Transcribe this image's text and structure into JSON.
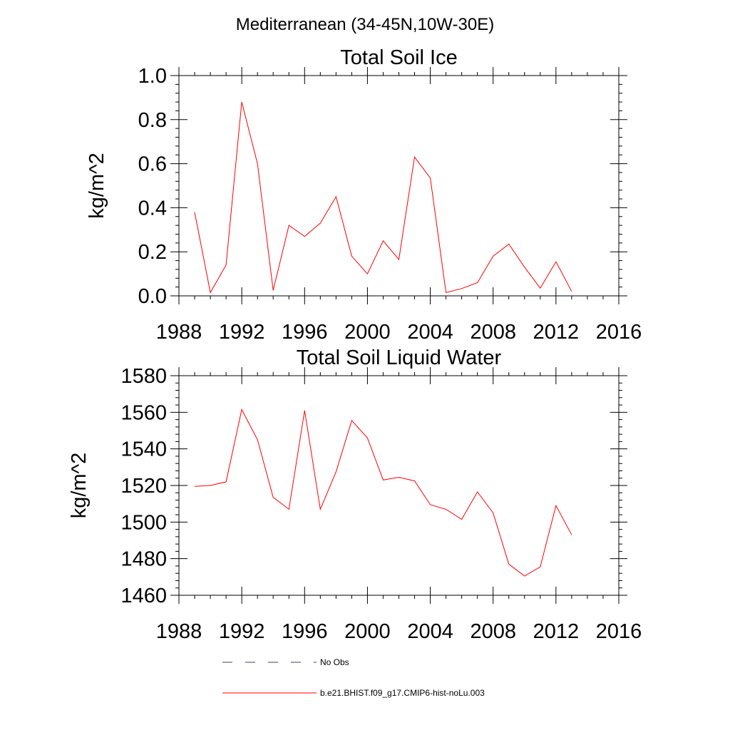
{
  "figure_title": "Mediterranean (34-45N,10W-30E)",
  "colors": {
    "model_line": "#ff0000",
    "obs_line": "#404060",
    "axes": "#000000"
  },
  "legend": [
    {
      "label": "No Obs",
      "style": "dashed",
      "color": "#404060"
    },
    {
      "label": "b.e21.BHIST.f09_g17.CMIP6-hist-noLu.003",
      "style": "solid",
      "color": "#ff0000"
    }
  ],
  "chart_data": [
    {
      "type": "line",
      "title": "Total Soil Ice",
      "xlabel": "",
      "ylabel": "kg/m^2",
      "xlim": [
        1988,
        2016
      ],
      "ylim": [
        0,
        1.0
      ],
      "x_ticks": [
        1988,
        1992,
        1996,
        2000,
        2004,
        2008,
        2012,
        2016
      ],
      "x_tick_labels": [
        "1988",
        "1992",
        "1996",
        "2000",
        "2004",
        "2008",
        "2012",
        "2016"
      ],
      "y_ticks": [
        0,
        0.2,
        0.4,
        0.6,
        0.8,
        1.0
      ],
      "y_tick_labels": [
        "0.0",
        "0.2",
        "0.4",
        "0.6",
        "0.8",
        "1.0"
      ],
      "grid": false,
      "series": [
        {
          "name": "b.e21.BHIST.f09_g17.CMIP6-hist-noLu.003",
          "x": [
            1989,
            1990,
            1991,
            1992,
            1993,
            1994,
            1995,
            1996,
            1997,
            1998,
            1999,
            2000,
            2001,
            2002,
            2003,
            2004,
            2005,
            2006,
            2007,
            2008,
            2009,
            2010,
            2011,
            2012,
            2013
          ],
          "values": [
            0.38,
            0.015,
            0.14,
            0.88,
            0.6,
            0.025,
            0.32,
            0.27,
            0.33,
            0.45,
            0.18,
            0.1,
            0.25,
            0.165,
            0.63,
            0.535,
            0.015,
            0.033,
            0.06,
            0.18,
            0.235,
            0.13,
            0.035,
            0.155,
            0.02
          ]
        }
      ]
    },
    {
      "type": "line",
      "title": "Total Soil Liquid Water",
      "xlabel": "",
      "ylabel": "kg/m^2",
      "xlim": [
        1988,
        2016
      ],
      "ylim": [
        1460,
        1580
      ],
      "x_ticks": [
        1988,
        1992,
        1996,
        2000,
        2004,
        2008,
        2012,
        2016
      ],
      "x_tick_labels": [
        "1988",
        "1992",
        "1996",
        "2000",
        "2004",
        "2008",
        "2012",
        "2016"
      ],
      "y_ticks": [
        1460,
        1480,
        1500,
        1520,
        1540,
        1560,
        1580
      ],
      "y_tick_labels": [
        "1460",
        "1480",
        "1500",
        "1520",
        "1540",
        "1560",
        "1580"
      ],
      "grid": false,
      "series": [
        {
          "name": "b.e21.BHIST.f09_g17.CMIP6-hist-noLu.003",
          "x": [
            1989,
            1990,
            1991,
            1992,
            1993,
            1994,
            1995,
            1996,
            1997,
            1998,
            1999,
            2000,
            2001,
            2002,
            2003,
            2004,
            2005,
            2006,
            2007,
            2008,
            2009,
            2010,
            2011,
            2012,
            2013
          ],
          "values": [
            1519.5,
            1520,
            1522,
            1561.5,
            1545,
            1513.5,
            1507,
            1561,
            1507,
            1527.5,
            1555.5,
            1546,
            1523,
            1524.5,
            1522.5,
            1509.5,
            1507,
            1501.5,
            1516.5,
            1505,
            1477,
            1470.5,
            1475.5,
            1509,
            1493
          ]
        }
      ]
    }
  ]
}
